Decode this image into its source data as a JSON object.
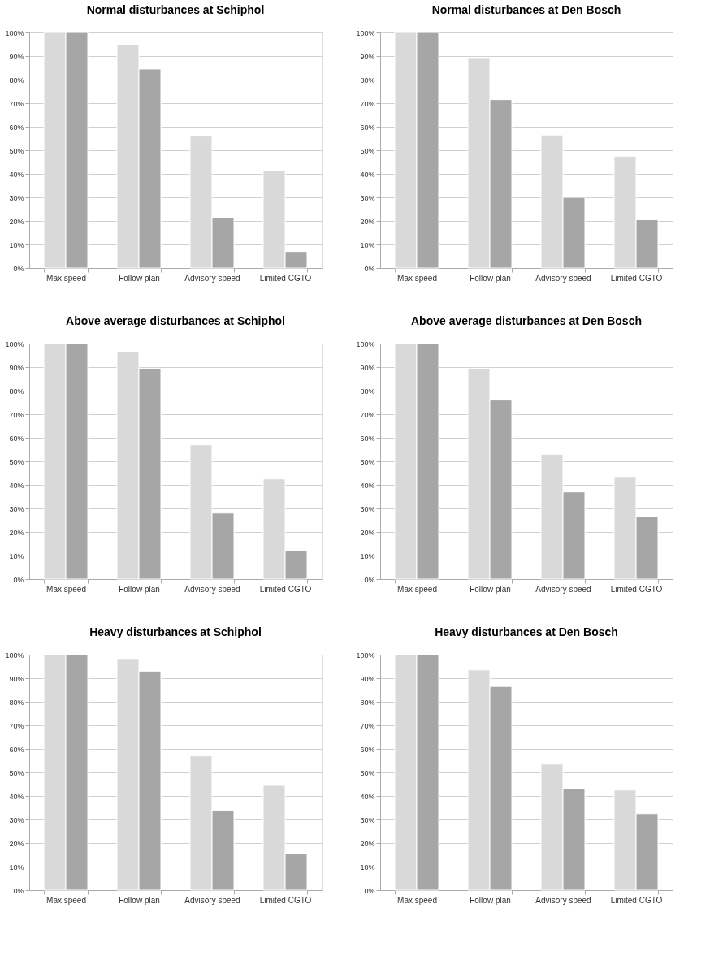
{
  "chart_data": [
    {
      "type": "bar",
      "title": "Normal disturbances at Schiphol",
      "categories": [
        "Max speed",
        "Follow plan",
        "Advisory speed",
        "Limited CGTO"
      ],
      "series": [
        {
          "color": "#d9d9d9",
          "values": [
            100,
            95,
            56,
            41.5
          ]
        },
        {
          "color": "#a6a6a6",
          "values": [
            100,
            84.5,
            21.5,
            7
          ]
        }
      ],
      "ylim": [
        0,
        100
      ],
      "yticks": [
        {
          "value": 0,
          "label": "0%"
        },
        {
          "value": 10,
          "label": "10%"
        },
        {
          "value": 20,
          "label": "20%"
        },
        {
          "value": 30,
          "label": "30%"
        },
        {
          "value": 40,
          "label": "40%"
        },
        {
          "value": 50,
          "label": "50%"
        },
        {
          "value": 60,
          "label": "60%"
        },
        {
          "value": 70,
          "label": "70%"
        },
        {
          "value": 80,
          "label": "80%"
        },
        {
          "value": 90,
          "label": "90%"
        },
        {
          "value": 100,
          "label": "100%"
        }
      ],
      "grid": "y"
    },
    {
      "type": "bar",
      "title": "Normal disturbances at Den Bosch",
      "categories": [
        "Max speed",
        "Follow plan",
        "Advisory speed",
        "Limited CGTO"
      ],
      "series": [
        {
          "color": "#d9d9d9",
          "values": [
            100,
            89,
            56.5,
            47.5
          ]
        },
        {
          "color": "#a6a6a6",
          "values": [
            100,
            71.5,
            30,
            20.5
          ]
        }
      ],
      "ylim": [
        0,
        100
      ],
      "yticks": [
        {
          "value": 0,
          "label": "0%"
        },
        {
          "value": 10,
          "label": "10%"
        },
        {
          "value": 20,
          "label": "20%"
        },
        {
          "value": 30,
          "label": "30%"
        },
        {
          "value": 40,
          "label": "40%"
        },
        {
          "value": 50,
          "label": "50%"
        },
        {
          "value": 60,
          "label": "60%"
        },
        {
          "value": 70,
          "label": "70%"
        },
        {
          "value": 80,
          "label": "80%"
        },
        {
          "value": 90,
          "label": "90%"
        },
        {
          "value": 100,
          "label": "100%"
        }
      ],
      "grid": "y"
    },
    {
      "type": "bar",
      "title": "Above average disturbances at Schiphol",
      "categories": [
        "Max speed",
        "Follow plan",
        "Advisory speed",
        "Limited CGTO"
      ],
      "series": [
        {
          "color": "#d9d9d9",
          "values": [
            100,
            96.5,
            57,
            42.5
          ]
        },
        {
          "color": "#a6a6a6",
          "values": [
            100,
            89.5,
            28,
            12
          ]
        }
      ],
      "ylim": [
        0,
        100
      ],
      "yticks": [
        {
          "value": 0,
          "label": "0%"
        },
        {
          "value": 10,
          "label": "10%"
        },
        {
          "value": 20,
          "label": "20%"
        },
        {
          "value": 30,
          "label": "30%"
        },
        {
          "value": 40,
          "label": "40%"
        },
        {
          "value": 50,
          "label": "50%"
        },
        {
          "value": 60,
          "label": "60%"
        },
        {
          "value": 70,
          "label": "70%"
        },
        {
          "value": 80,
          "label": "80%"
        },
        {
          "value": 90,
          "label": "90%"
        },
        {
          "value": 100,
          "label": "100%"
        }
      ],
      "grid": "y"
    },
    {
      "type": "bar",
      "title": "Above average disturbances at Den Bosch",
      "categories": [
        "Max speed",
        "Follow plan",
        "Advisory speed",
        "Limited CGTO"
      ],
      "series": [
        {
          "color": "#d9d9d9",
          "values": [
            100,
            89.5,
            53,
            43.5
          ]
        },
        {
          "color": "#a6a6a6",
          "values": [
            100,
            76,
            37,
            26.5
          ]
        }
      ],
      "ylim": [
        0,
        100
      ],
      "yticks": [
        {
          "value": 0,
          "label": "0%"
        },
        {
          "value": 10,
          "label": "10%"
        },
        {
          "value": 20,
          "label": "20%"
        },
        {
          "value": 30,
          "label": "30%"
        },
        {
          "value": 40,
          "label": "40%"
        },
        {
          "value": 50,
          "label": "50%"
        },
        {
          "value": 60,
          "label": "60%"
        },
        {
          "value": 70,
          "label": "70%"
        },
        {
          "value": 80,
          "label": "80%"
        },
        {
          "value": 90,
          "label": "90%"
        },
        {
          "value": 100,
          "label": "100%"
        }
      ],
      "grid": "y"
    },
    {
      "type": "bar",
      "title": "Heavy disturbances at Schiphol",
      "categories": [
        "Max speed",
        "Follow plan",
        "Advisory speed",
        "Limited CGTO"
      ],
      "series": [
        {
          "color": "#d9d9d9",
          "values": [
            100,
            98,
            57,
            44.5
          ]
        },
        {
          "color": "#a6a6a6",
          "values": [
            100,
            93,
            34,
            15.5
          ]
        }
      ],
      "ylim": [
        0,
        100
      ],
      "yticks": [
        {
          "value": 0,
          "label": "0%"
        },
        {
          "value": 10,
          "label": "10%"
        },
        {
          "value": 20,
          "label": "20%"
        },
        {
          "value": 30,
          "label": "30%"
        },
        {
          "value": 40,
          "label": "40%"
        },
        {
          "value": 50,
          "label": "50%"
        },
        {
          "value": 60,
          "label": "60%"
        },
        {
          "value": 70,
          "label": "70%"
        },
        {
          "value": 80,
          "label": "80%"
        },
        {
          "value": 90,
          "label": "90%"
        },
        {
          "value": 100,
          "label": "100%"
        }
      ],
      "grid": "y"
    },
    {
      "type": "bar",
      "title": "Heavy disturbances at Den Bosch",
      "categories": [
        "Max speed",
        "Follow plan",
        "Advisory speed",
        "Limited CGTO"
      ],
      "series": [
        {
          "color": "#d9d9d9",
          "values": [
            100,
            93.5,
            53.5,
            42.5
          ]
        },
        {
          "color": "#a6a6a6",
          "values": [
            100,
            86.5,
            43,
            32.5
          ]
        }
      ],
      "ylim": [
        0,
        100
      ],
      "yticks": [
        {
          "value": 0,
          "label": "0%"
        },
        {
          "value": 10,
          "label": "10%"
        },
        {
          "value": 20,
          "label": "20%"
        },
        {
          "value": 30,
          "label": "30%"
        },
        {
          "value": 40,
          "label": "40%"
        },
        {
          "value": 50,
          "label": "50%"
        },
        {
          "value": 60,
          "label": "60%"
        },
        {
          "value": 70,
          "label": "70%"
        },
        {
          "value": 80,
          "label": "80%"
        },
        {
          "value": 90,
          "label": "90%"
        },
        {
          "value": 100,
          "label": "100%"
        }
      ],
      "grid": "y"
    }
  ]
}
